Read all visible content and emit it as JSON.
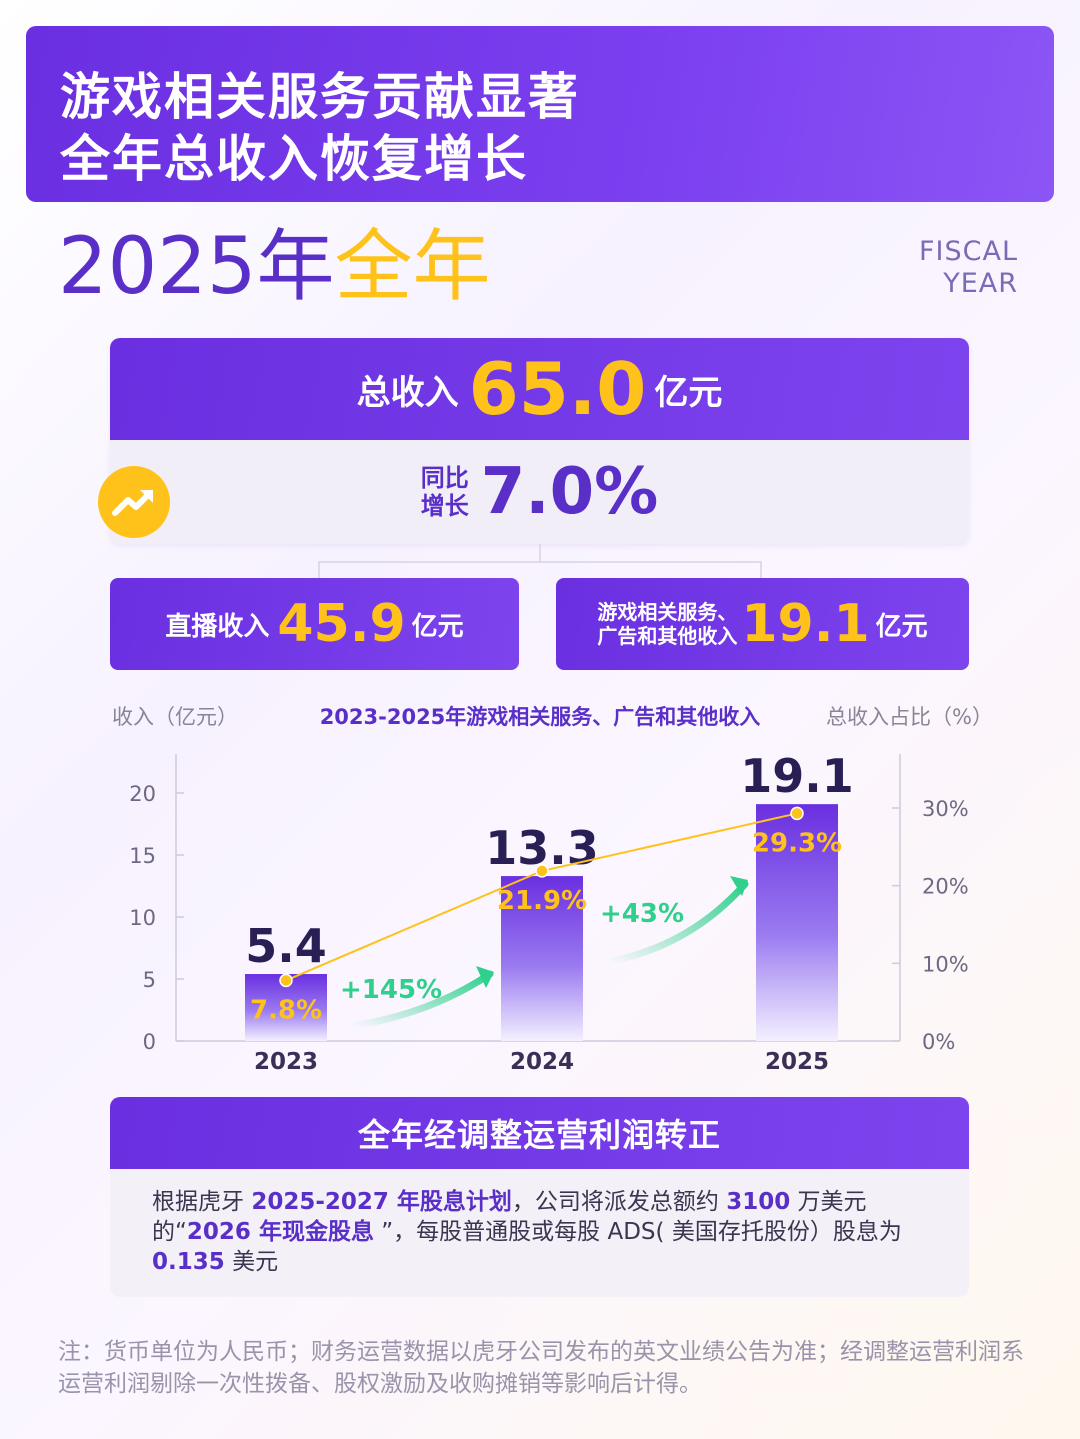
{
  "banner": {
    "line1": "游戏相关服务贡献显著",
    "line2": "全年总收入恢复增长"
  },
  "year_title": {
    "year": "2025年",
    "highlight": "全年"
  },
  "fiscal": {
    "line1": "FISCAL",
    "line2": "YEAR"
  },
  "total_revenue": {
    "label": "总收入",
    "value": "65.0",
    "unit": "亿元",
    "yoy_label_1": "同比",
    "yoy_label_2": "增长",
    "yoy_value": "7.0%"
  },
  "live_revenue": {
    "label": "直播收入",
    "value": "45.9",
    "unit": "亿元"
  },
  "other_revenue": {
    "label_1": "游戏相关服务、",
    "label_2": "广告和其他收入",
    "value": "19.1",
    "unit": "亿元"
  },
  "colors": {
    "purple": "#6a2fe0",
    "gold": "#ffc21a",
    "green": "#2fcf8c"
  },
  "chart_data": {
    "type": "bar",
    "title": "2023-2025年游戏相关服务、广告和其他收入",
    "ylabel": "收入（亿元）",
    "y2label": "总收入占比（%）",
    "categories": [
      "2023",
      "2024",
      "2025"
    ],
    "ylim": [
      0,
      20
    ],
    "yticks": [
      "0",
      "5",
      "10",
      "15",
      "20"
    ],
    "y2lim": [
      0,
      30
    ],
    "y2ticks": [
      "0%",
      "10%",
      "20%",
      "30%"
    ],
    "series": [
      {
        "values": [
          5.4,
          13.3,
          19.1
        ],
        "labels": [
          "5.4",
          "13.3",
          "19.1"
        ]
      },
      {
        "values": [
          7.8,
          21.9,
          29.3
        ],
        "labels": [
          "7.8%",
          "21.9%",
          "29.3%"
        ],
        "axis": "right"
      }
    ],
    "growth_annotations": [
      "+145%",
      "+43%"
    ],
    "grid": false
  },
  "profit": {
    "title": "全年经调整运营利润转正",
    "p1": "根据虎牙 ",
    "p1_em": "2025-2027 年股息计划",
    "p2": "，公司将派发总额约 ",
    "p2_em": "3100",
    "p3": " 万美元的“",
    "p3_em": "2026 年现金股息",
    "p4": " ”，每股普通股或每股 ADS( 美国存托股份）股息为 ",
    "p4_em": "0.135",
    "p5": " 美元"
  },
  "note": "注：货币单位为人民币；财务运营数据以虎牙公司发布的英文业绩公告为准；经调整运营利润系运营利润剔除一次性拨备、股权激励及收购摊销等影响后计得。"
}
